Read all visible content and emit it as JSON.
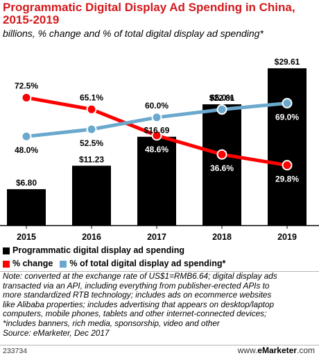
{
  "header": {
    "title_line1": "Programmatic Digital Display Ad Spending in China,",
    "title_line2": "2015-2019",
    "subtitle": "billions, % change and % of total digital display ad spending*"
  },
  "colors": {
    "title": "#d4191d",
    "bars": "#000000",
    "change_line": "#ff0000",
    "share_line": "#6aa9cd",
    "divider": "#b5b5b5"
  },
  "chart_data": {
    "type": "bar",
    "categories": [
      "2015",
      "2016",
      "2017",
      "2018",
      "2019"
    ],
    "series": [
      {
        "name": "Programmatic digital display ad spending",
        "type": "bar",
        "values": [
          6.8,
          11.23,
          16.69,
          22.81,
          29.61
        ],
        "labels": [
          "$6.80",
          "$11.23",
          "$16.69",
          "$22.81",
          "$29.61"
        ]
      },
      {
        "name": "% change",
        "type": "line",
        "values": [
          72.5,
          65.1,
          48.6,
          36.6,
          29.8
        ],
        "labels": [
          "72.5%",
          "65.1%",
          "48.6%",
          "36.6%",
          "29.8%"
        ]
      },
      {
        "name": "% of total digital display ad spending*",
        "type": "line",
        "values": [
          48.0,
          52.5,
          60.0,
          65.0,
          69.0
        ],
        "labels": [
          "48.0%",
          "52.5%",
          "60.0%",
          "65.0%",
          "69.0%"
        ]
      }
    ],
    "bar_ylim": [
      0,
      32
    ],
    "line_ylim": [
      20,
      85
    ],
    "grid": false
  },
  "legend": {
    "bars": "Programmatic digital display ad spending",
    "change": "% change",
    "share": "% of total digital display ad spending*"
  },
  "note": {
    "lines": [
      "Note: converted at the exchange rate of US$1=RMB6.64; digital display ads",
      "transacted via an API, including everything from publisher-erected APIs to",
      "more standardized RTB technology; includes ads on ecommerce websites",
      "like Alibaba properties; includes advertising that appears on desktop/laptop",
      "computers, mobile phones, tablets and other internet-connected devices;",
      "*includes banners, rich media, sponsorship, video and other",
      "Source: eMarketer, Dec 2017"
    ]
  },
  "footer": {
    "chart_id": "233734",
    "brand_prefix": "www.",
    "brand_main": "eMarketer",
    "brand_suffix": ".com"
  }
}
